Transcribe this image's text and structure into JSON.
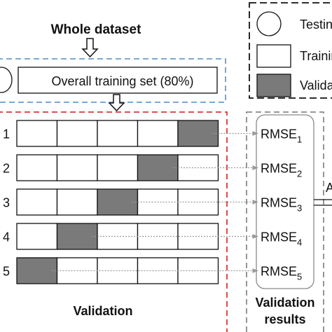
{
  "title": "Whole dataset",
  "training_set_label": "Overall training set (80%)",
  "legend": [
    {
      "shape": "circle",
      "label": "Testing"
    },
    {
      "shape": "white-box",
      "label": "Training"
    },
    {
      "shape": "gray-box",
      "label": "Validation"
    }
  ],
  "folds": [
    {
      "label": "1",
      "validation_index": 4,
      "result": "RMSE",
      "sub": "1"
    },
    {
      "label": "2",
      "validation_index": 3,
      "result": "RMSE",
      "sub": "2"
    },
    {
      "label": "3",
      "validation_index": 2,
      "result": "RMSE",
      "sub": "3"
    },
    {
      "label": "4",
      "validation_index": 1,
      "result": "RMSE",
      "sub": "4"
    },
    {
      "label": "5",
      "validation_index": 0,
      "result": "RMSE",
      "sub": "5"
    }
  ],
  "validation_label": "Validation",
  "results_label_line1": "Validation",
  "results_label_line2": "results",
  "average_label": "A",
  "colors": {
    "validation_fill": "#7a7a7a",
    "blue_dash": "#6a9ccd",
    "red_dash": "#d23a3a",
    "gray_dash": "#8a8a8a",
    "stroke": "#111111"
  }
}
